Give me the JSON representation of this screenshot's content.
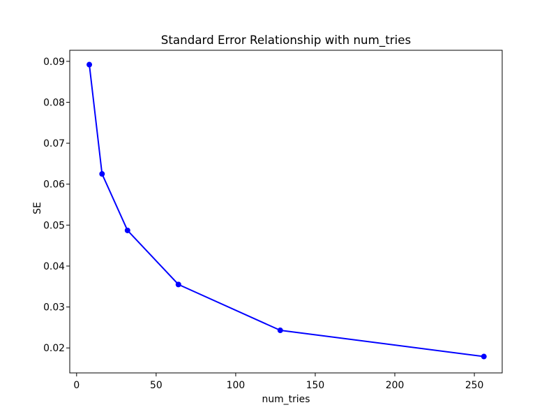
{
  "figure": {
    "background": "#ffffff"
  },
  "chart_data": {
    "type": "line",
    "title": "Standard Error Relationship with num_tries",
    "xlabel": "num_tries",
    "ylabel": "SE",
    "x": [
      8,
      16,
      32,
      64,
      128,
      256
    ],
    "y": [
      0.0892,
      0.0625,
      0.0487,
      0.0355,
      0.0243,
      0.0179
    ],
    "xlim": [
      -4.3,
      267.5
    ],
    "ylim": [
      0.0139,
      0.0927
    ],
    "xticks": [
      {
        "v": 0,
        "label": "0"
      },
      {
        "v": 50,
        "label": "50"
      },
      {
        "v": 100,
        "label": "100"
      },
      {
        "v": 150,
        "label": "150"
      },
      {
        "v": 200,
        "label": "200"
      },
      {
        "v": 250,
        "label": "250"
      }
    ],
    "yticks": [
      {
        "v": 0.02,
        "label": "0.02"
      },
      {
        "v": 0.03,
        "label": "0.03"
      },
      {
        "v": 0.04,
        "label": "0.04"
      },
      {
        "v": 0.05,
        "label": "0.05"
      },
      {
        "v": 0.06,
        "label": "0.06"
      },
      {
        "v": 0.07,
        "label": "0.07"
      },
      {
        "v": 0.08,
        "label": "0.08"
      },
      {
        "v": 0.09,
        "label": "0.09"
      }
    ],
    "grid": false,
    "legend": false,
    "marker": "circle",
    "colors": {
      "line": "#0000ff",
      "marker": "#0000ff",
      "text": "#000000",
      "spine": "#000000",
      "background": "#ffffff"
    }
  }
}
